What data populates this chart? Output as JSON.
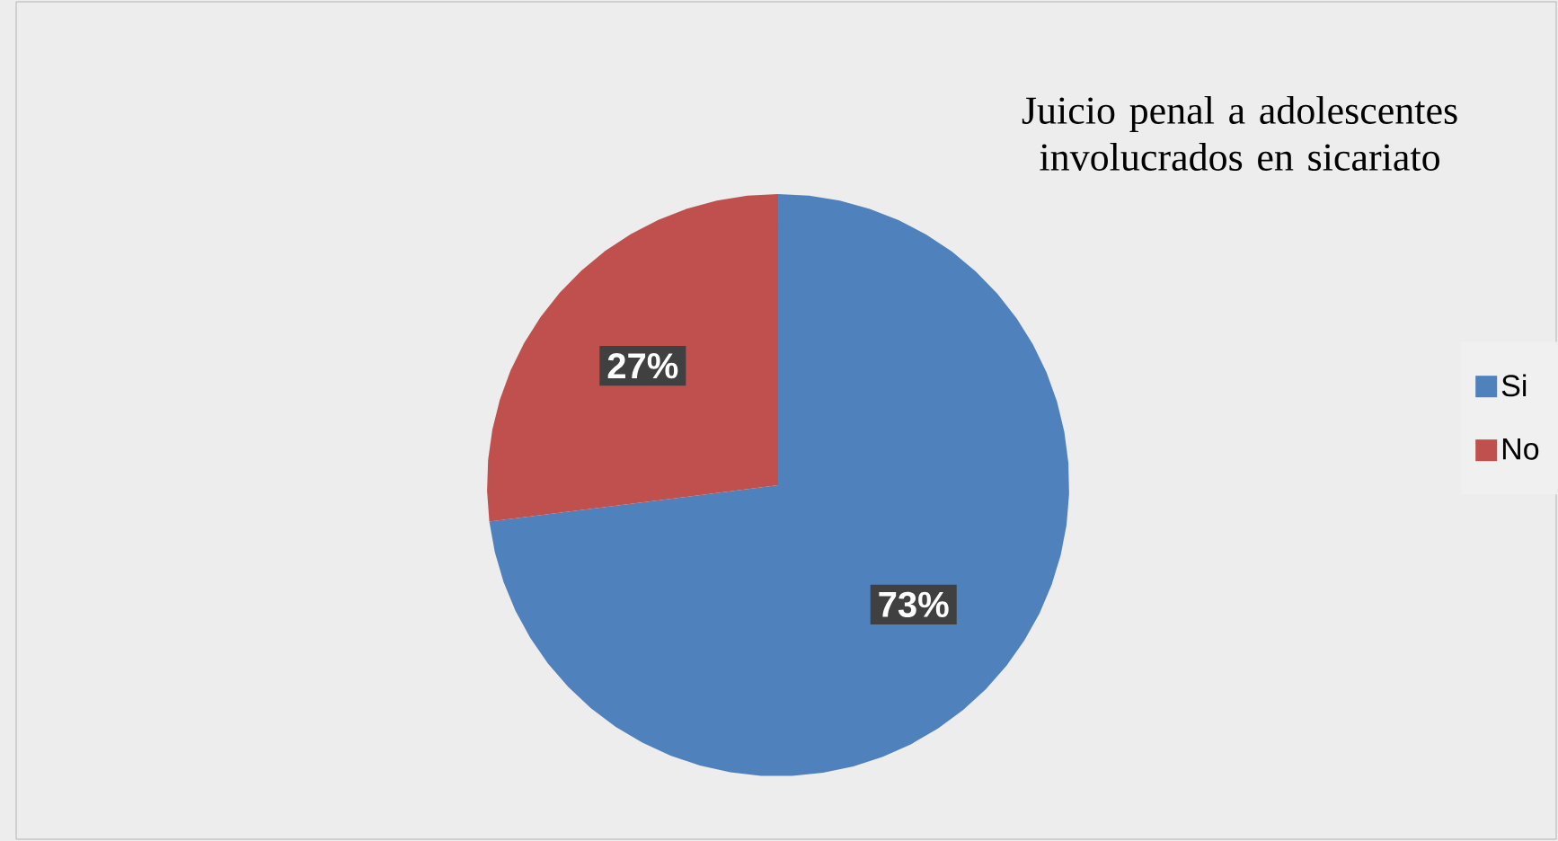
{
  "chart_data": {
    "type": "pie",
    "title": "Juicio penal a adolescentes involucrados en sicariato",
    "categories": [
      "Si",
      "No"
    ],
    "values": [
      73,
      27
    ],
    "colors": [
      "#4f81bd",
      "#c0504d"
    ],
    "value_labels": [
      "73%",
      "27%"
    ],
    "legend": "right"
  }
}
